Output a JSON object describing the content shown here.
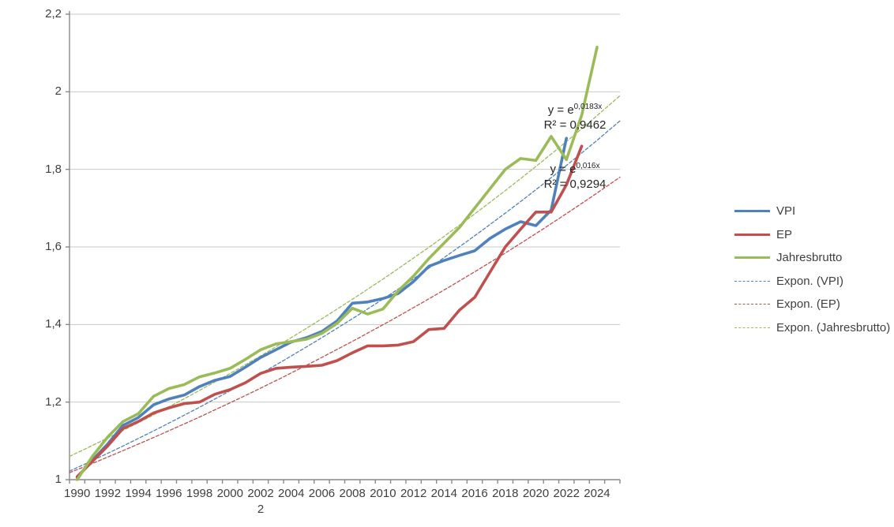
{
  "chart_data": {
    "type": "line",
    "title": "",
    "xlabel": "",
    "ylabel": "",
    "x_axis": {
      "start": 1990,
      "end": 2024,
      "tick_step_years": 2
    },
    "ylim": [
      1,
      2.2
    ],
    "y_tick_values": [
      1,
      1.2,
      1.4,
      1.6,
      1.8,
      2,
      2.2
    ],
    "y_tick_labels": [
      "1",
      "1,2",
      "1,4",
      "1,6",
      "1,8",
      "2",
      "2,2"
    ],
    "x_tick_labels": [
      "1990",
      "1992",
      "1994",
      "1996",
      "1998",
      "2000",
      "2002",
      "2004",
      "2006",
      "2008",
      "2010",
      "2012",
      "2014",
      "2016",
      "2018",
      "2020",
      "2022",
      "2024"
    ],
    "stray_label": "2",
    "grid": "horizontal",
    "legend_position": "right",
    "colors": {
      "vpi": "#4F81BD",
      "ep": "#C0504D",
      "jahresbrutto": "#9BBB59",
      "axis": "#898989",
      "grid": "#c9c9c9"
    },
    "series": [
      {
        "name": "VPI",
        "color": "#4F81BD",
        "start_year": 1990,
        "values": [
          1.005,
          1.05,
          1.092,
          1.14,
          1.16,
          1.193,
          1.208,
          1.218,
          1.24,
          1.256,
          1.266,
          1.29,
          1.315,
          1.335,
          1.355,
          1.366,
          1.382,
          1.409,
          1.455,
          1.458,
          1.467,
          1.48,
          1.511,
          1.55,
          1.565,
          1.578,
          1.59,
          1.622,
          1.646,
          1.665,
          1.655,
          1.695,
          1.88
        ]
      },
      {
        "name": "EP",
        "color": "#C0504D",
        "start_year": 1990,
        "values": [
          1.008,
          1.047,
          1.087,
          1.132,
          1.15,
          1.172,
          1.185,
          1.196,
          1.2,
          1.22,
          1.232,
          1.25,
          1.274,
          1.287,
          1.29,
          1.292,
          1.295,
          1.307,
          1.327,
          1.345,
          1.345,
          1.347,
          1.356,
          1.387,
          1.39,
          1.437,
          1.47,
          1.535,
          1.6,
          1.646,
          1.69,
          1.69,
          1.76,
          1.86
        ]
      },
      {
        "name": "Jahresbrutto",
        "color": "#9BBB59",
        "start_year": 1990,
        "values": [
          1.0,
          1.06,
          1.11,
          1.15,
          1.17,
          1.215,
          1.235,
          1.245,
          1.265,
          1.275,
          1.287,
          1.31,
          1.335,
          1.35,
          1.356,
          1.362,
          1.377,
          1.403,
          1.442,
          1.427,
          1.44,
          1.487,
          1.525,
          1.57,
          1.61,
          1.65,
          1.7,
          1.75,
          1.8,
          1.828,
          1.823,
          1.885,
          1.825,
          1.94,
          2.115
        ]
      }
    ],
    "trendlines": [
      {
        "name": "Expon. (VPI)",
        "color": "#4F81BD",
        "value_at_left_edge": 1.022,
        "value_at_right_edge": 1.925
      },
      {
        "name": "Expon. (EP)",
        "color": "#C0504D",
        "value_at_left_edge": 1.018,
        "value_at_right_edge": 1.78
      },
      {
        "name": "Expon. (Jahresbrutto)",
        "color": "#9BBB59",
        "value_at_left_edge": 1.06,
        "value_at_right_edge": 1.99
      }
    ],
    "legend": [
      {
        "label": "VPI",
        "color": "#4F81BD",
        "dashed": false
      },
      {
        "label": "EP",
        "color": "#C0504D",
        "dashed": false
      },
      {
        "label": "Jahresbrutto",
        "color": "#9BBB59",
        "dashed": false
      },
      {
        "label": "Expon. (VPI)",
        "color": "#4F81BD",
        "dashed": true
      },
      {
        "label": "Expon. (EP)",
        "color": "#C0504D",
        "dashed": true
      },
      {
        "label": "Expon. (Jahresbrutto)",
        "color": "#9BBB59",
        "dashed": true
      }
    ],
    "annotations": [
      {
        "eq_base": "y = e",
        "eq_exp": "0,0183x",
        "r2": "R² = 0,9462"
      },
      {
        "eq_base": "y = e",
        "eq_exp": "0,016x",
        "r2": "R² = 0,9294"
      }
    ]
  }
}
